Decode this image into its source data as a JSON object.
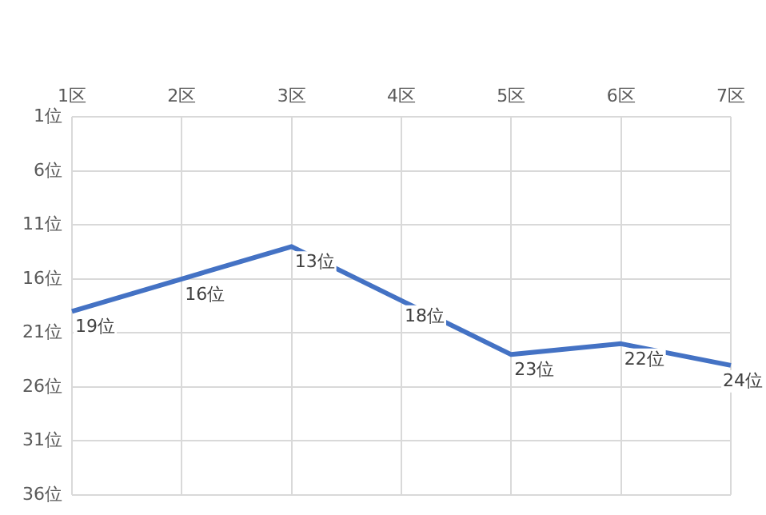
{
  "chart_data": {
    "type": "line",
    "categories": [
      "1区",
      "2区",
      "3区",
      "4区",
      "5区",
      "6区",
      "7区"
    ],
    "values": [
      19,
      16,
      13,
      18,
      23,
      22,
      24
    ],
    "value_labels": [
      "19位",
      "16位",
      "13位",
      "18位",
      "23位",
      "22位",
      "24位"
    ],
    "color": "#4472c4",
    "ylim": [
      36,
      1
    ],
    "yticks": [
      {
        "value": 1,
        "label": "1位"
      },
      {
        "value": 6,
        "label": "6位"
      },
      {
        "value": 11,
        "label": "11位"
      },
      {
        "value": 16,
        "label": "16位"
      },
      {
        "value": 21,
        "label": "21位"
      },
      {
        "value": 26,
        "label": "26位"
      },
      {
        "value": 31,
        "label": "31位"
      },
      {
        "value": 36,
        "label": "36位"
      }
    ],
    "grid": true,
    "marker": "none",
    "line_style": "solid"
  }
}
